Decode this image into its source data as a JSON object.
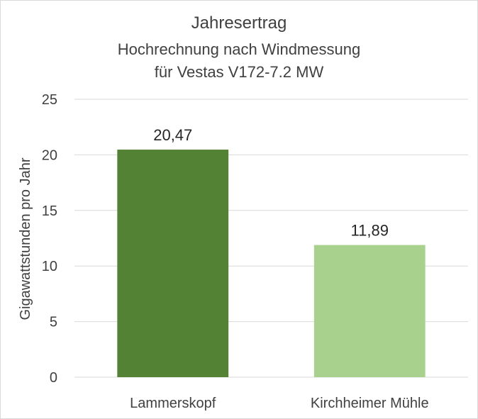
{
  "chart_data": {
    "type": "bar",
    "title": "Jahresertrag",
    "subtitle": [
      "Hochrechnung nach Windmessung",
      "für Vestas V172-7.2 MW"
    ],
    "ylabel": "Gigawattstunden pro Jahr",
    "xlabel": "",
    "ylim": [
      0,
      25
    ],
    "yticks": [
      0,
      5,
      10,
      15,
      20,
      25
    ],
    "categories": [
      "Lammerskopf",
      "Kirchheimer Mühle"
    ],
    "values": [
      20.47,
      11.89
    ],
    "data_labels": [
      "20,47",
      "11,89"
    ],
    "colors": [
      "#548235",
      "#a9d18e"
    ],
    "grid": true,
    "legend": "none"
  }
}
